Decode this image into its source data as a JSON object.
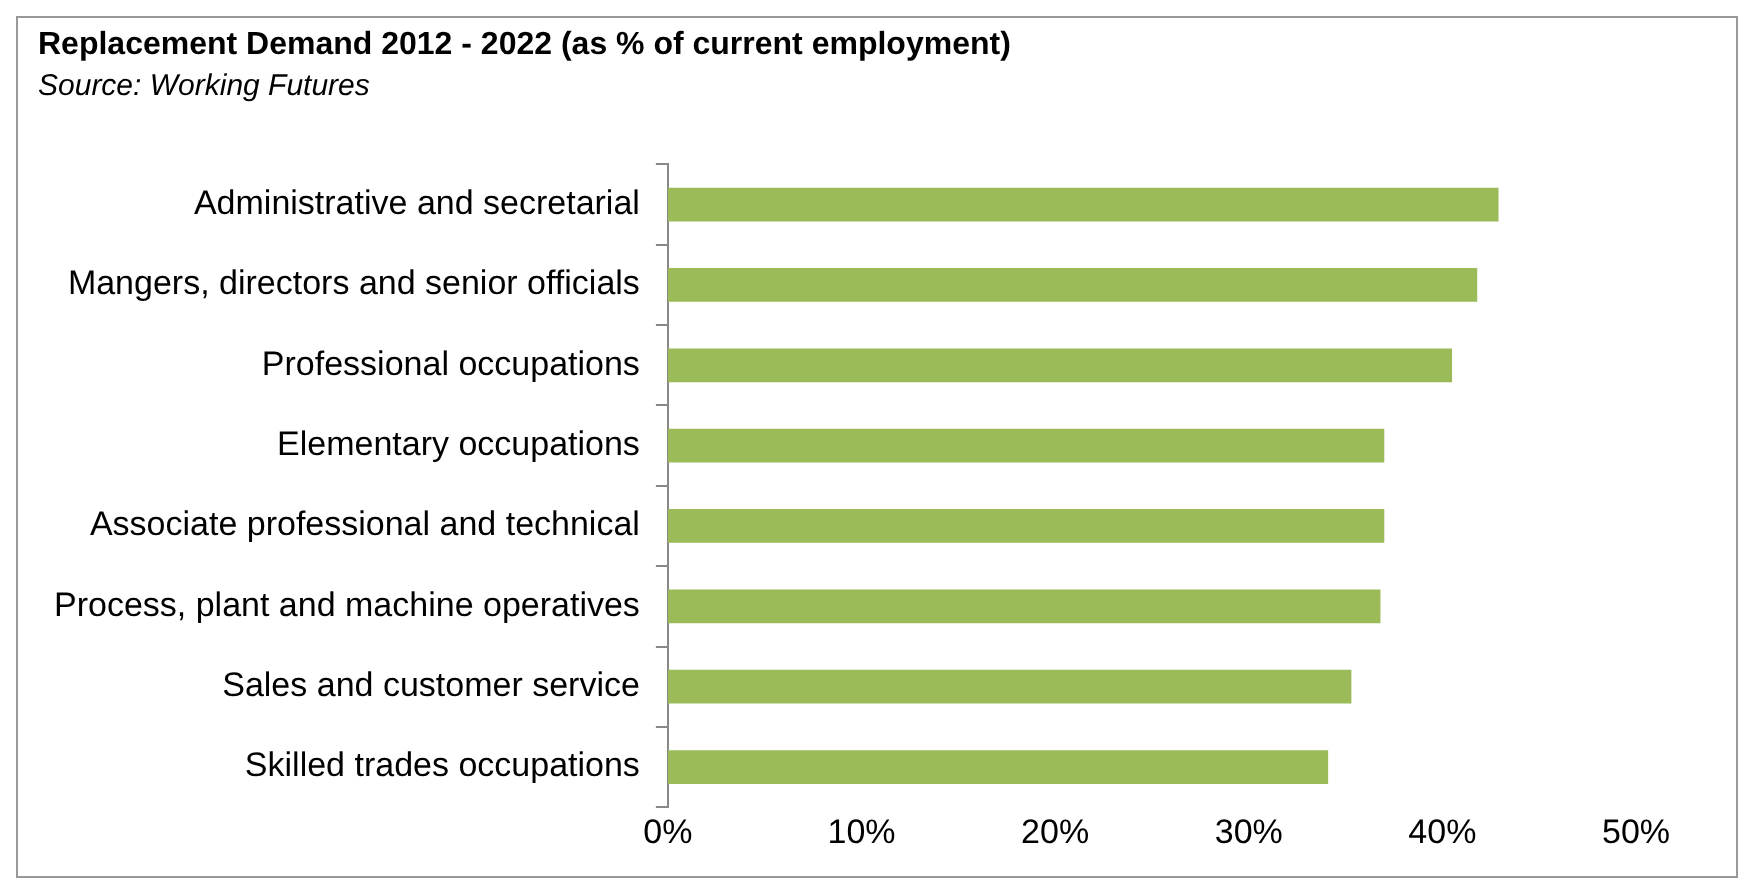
{
  "chart_data": {
    "type": "bar",
    "orientation": "horizontal",
    "title": "Replacement Demand 2012 - 2022 (as % of current employment)",
    "subtitle": "Source: Working Futures",
    "categories": [
      "Administrative and secretarial",
      "Mangers, directors and senior officials",
      "Professional occupations",
      "Elementary occupations",
      "Associate professional and technical",
      "Process, plant and machine operatives",
      "Sales and customer service",
      "Skilled trades occupations"
    ],
    "values": [
      42.9,
      41.8,
      40.5,
      37.0,
      37.0,
      36.8,
      35.3,
      34.1
    ],
    "color": "#9bbb59",
    "xlim": [
      0,
      50
    ],
    "xticks": [
      {
        "value": 0,
        "label": "0%"
      },
      {
        "value": 10,
        "label": "10%"
      },
      {
        "value": 20,
        "label": "20%"
      },
      {
        "value": 30,
        "label": "30%"
      },
      {
        "value": 40,
        "label": "40%"
      },
      {
        "value": 50,
        "label": "50%"
      }
    ],
    "grid": false,
    "legend": false
  }
}
